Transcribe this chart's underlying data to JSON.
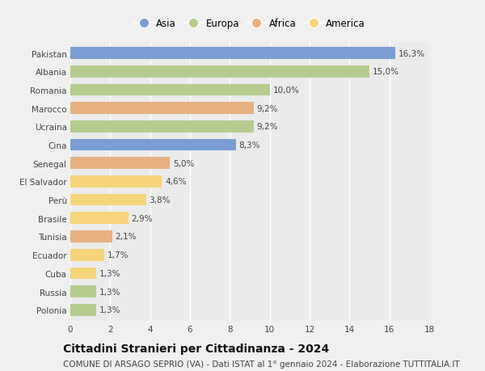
{
  "countries": [
    "Pakistan",
    "Albania",
    "Romania",
    "Marocco",
    "Ucraina",
    "Cina",
    "Senegal",
    "El Salvador",
    "Perù",
    "Brasile",
    "Tunisia",
    "Ecuador",
    "Cuba",
    "Russia",
    "Polonia"
  ],
  "values": [
    16.3,
    15.0,
    10.0,
    9.2,
    9.2,
    8.3,
    5.0,
    4.6,
    3.8,
    2.9,
    2.1,
    1.7,
    1.3,
    1.3,
    1.3
  ],
  "labels": [
    "16,3%",
    "15,0%",
    "10,0%",
    "9,2%",
    "9,2%",
    "8,3%",
    "5,0%",
    "4,6%",
    "3,8%",
    "2,9%",
    "2,1%",
    "1,7%",
    "1,3%",
    "1,3%",
    "1,3%"
  ],
  "continents": [
    "Asia",
    "Europa",
    "Europa",
    "Africa",
    "Europa",
    "Asia",
    "Africa",
    "America",
    "America",
    "America",
    "Africa",
    "America",
    "America",
    "Europa",
    "Europa"
  ],
  "continent_colors": {
    "Asia": "#7b9fd4",
    "Europa": "#b5cc8e",
    "Africa": "#e8b080",
    "America": "#f5d47a"
  },
  "legend_order": [
    "Asia",
    "Europa",
    "Africa",
    "America"
  ],
  "xlim": [
    0,
    18
  ],
  "xticks": [
    0,
    2,
    4,
    6,
    8,
    10,
    12,
    14,
    16,
    18
  ],
  "title": "Cittadini Stranieri per Cittadinanza - 2024",
  "subtitle": "COMUNE DI ARSAGO SEPRIO (VA) - Dati ISTAT al 1° gennaio 2024 - Elaborazione TUTTITALIA.IT",
  "bg_color": "#f0f0f0",
  "plot_bg_color": "#ebebeb",
  "grid_color": "#ffffff",
  "title_fontsize": 10,
  "subtitle_fontsize": 7.5,
  "label_fontsize": 7.5,
  "tick_fontsize": 7.5,
  "legend_fontsize": 8.5
}
